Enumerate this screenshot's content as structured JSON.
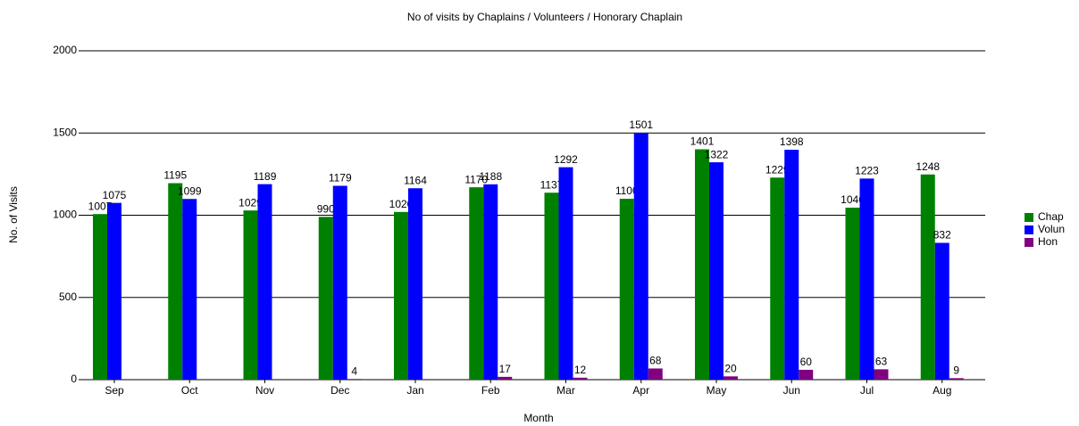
{
  "chart_data": {
    "type": "bar",
    "title": "No of visits by Chaplains / Volunteers / Honorary Chaplain",
    "x_label": "Month",
    "y_label": "No. of Visits",
    "categories": [
      "Sep",
      "Oct",
      "Nov",
      "Dec",
      "Jan",
      "Feb",
      "Mar",
      "Apr",
      "May",
      "Jun",
      "Jul",
      "Aug"
    ],
    "series": [
      {
        "name": "Chap",
        "color": "#008000",
        "values": [
          1007,
          1195,
          1029,
          990,
          1020,
          1170,
          1137,
          1100,
          1401,
          1229,
          1046,
          1248
        ]
      },
      {
        "name": "Volun",
        "color": "#0000ff",
        "values": [
          1075,
          1099,
          1189,
          1179,
          1164,
          1188,
          1292,
          1501,
          1322,
          1398,
          1223,
          832
        ]
      },
      {
        "name": "Hon",
        "color": "#800080",
        "values": [
          null,
          null,
          null,
          4,
          null,
          17,
          12,
          68,
          20,
          60,
          63,
          9
        ]
      }
    ],
    "ylim": [
      0,
      2000
    ],
    "yticks": [
      0,
      500,
      1000,
      1500,
      2000
    ],
    "grid": true,
    "legend": "right"
  }
}
